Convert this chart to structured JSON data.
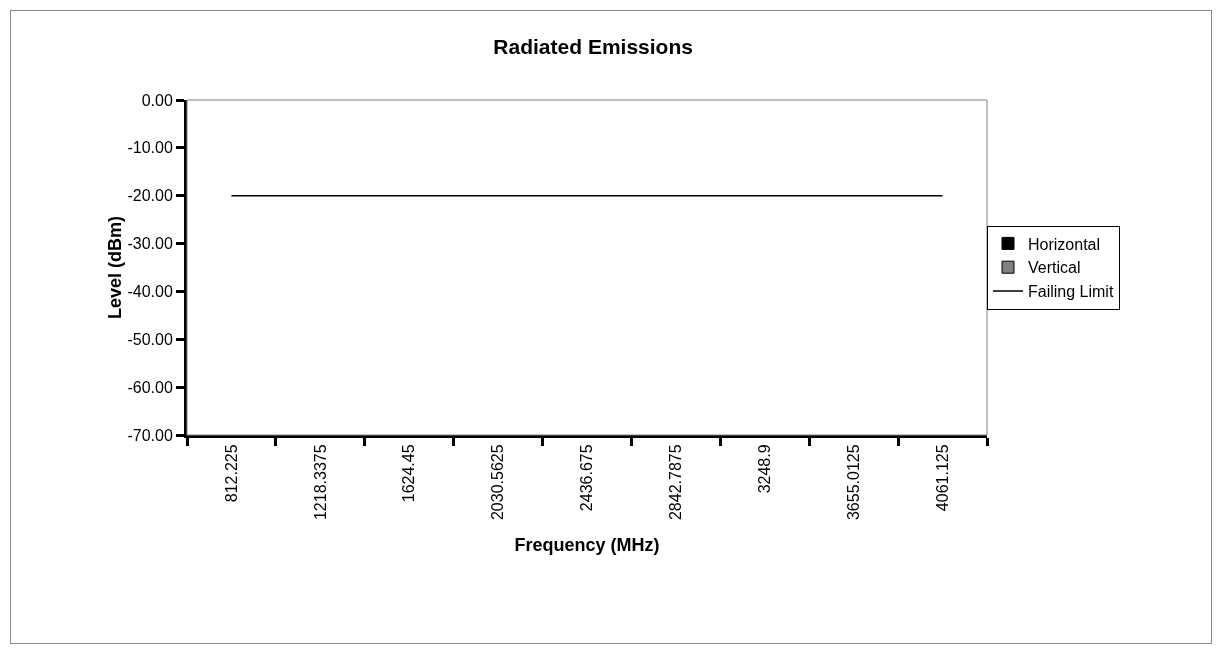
{
  "chart_data": {
    "type": "bar",
    "title": "Radiated Emissions",
    "xlabel": "Frequency (MHz)",
    "ylabel": "Level (dBm)",
    "categories": [
      "812.225",
      "1218.3375",
      "1624.45",
      "2030.5625",
      "2436.675",
      "2842.7875",
      "3248.9",
      "3655.0125",
      "4061.125"
    ],
    "series": [
      {
        "name": "Horizontal",
        "color": "#000000",
        "values": [
          null,
          null,
          null,
          null,
          null,
          null,
          null,
          null,
          null
        ]
      },
      {
        "name": "Vertical",
        "color": "#808080",
        "values": [
          null,
          null,
          null,
          null,
          null,
          null,
          null,
          null,
          null
        ]
      },
      {
        "name": "Failing Limit",
        "type": "line",
        "color": "#000000",
        "values": [
          -20,
          -20,
          -20,
          -20,
          -20,
          -20,
          -20,
          -20,
          -20
        ]
      }
    ],
    "ylim": [
      -70,
      0
    ],
    "yticks": [
      {
        "value": -70,
        "label": "-70.00"
      },
      {
        "value": -60,
        "label": "-60.00"
      },
      {
        "value": -50,
        "label": "-50.00"
      },
      {
        "value": -40,
        "label": "-40.00"
      },
      {
        "value": -30,
        "label": "-30.00"
      },
      {
        "value": -20,
        "label": "-20.00"
      },
      {
        "value": -10,
        "label": "-10.00"
      },
      {
        "value": 0,
        "label": "0.00"
      }
    ],
    "grid": false,
    "legend": "right",
    "marker": "none",
    "line_style": "solid"
  }
}
